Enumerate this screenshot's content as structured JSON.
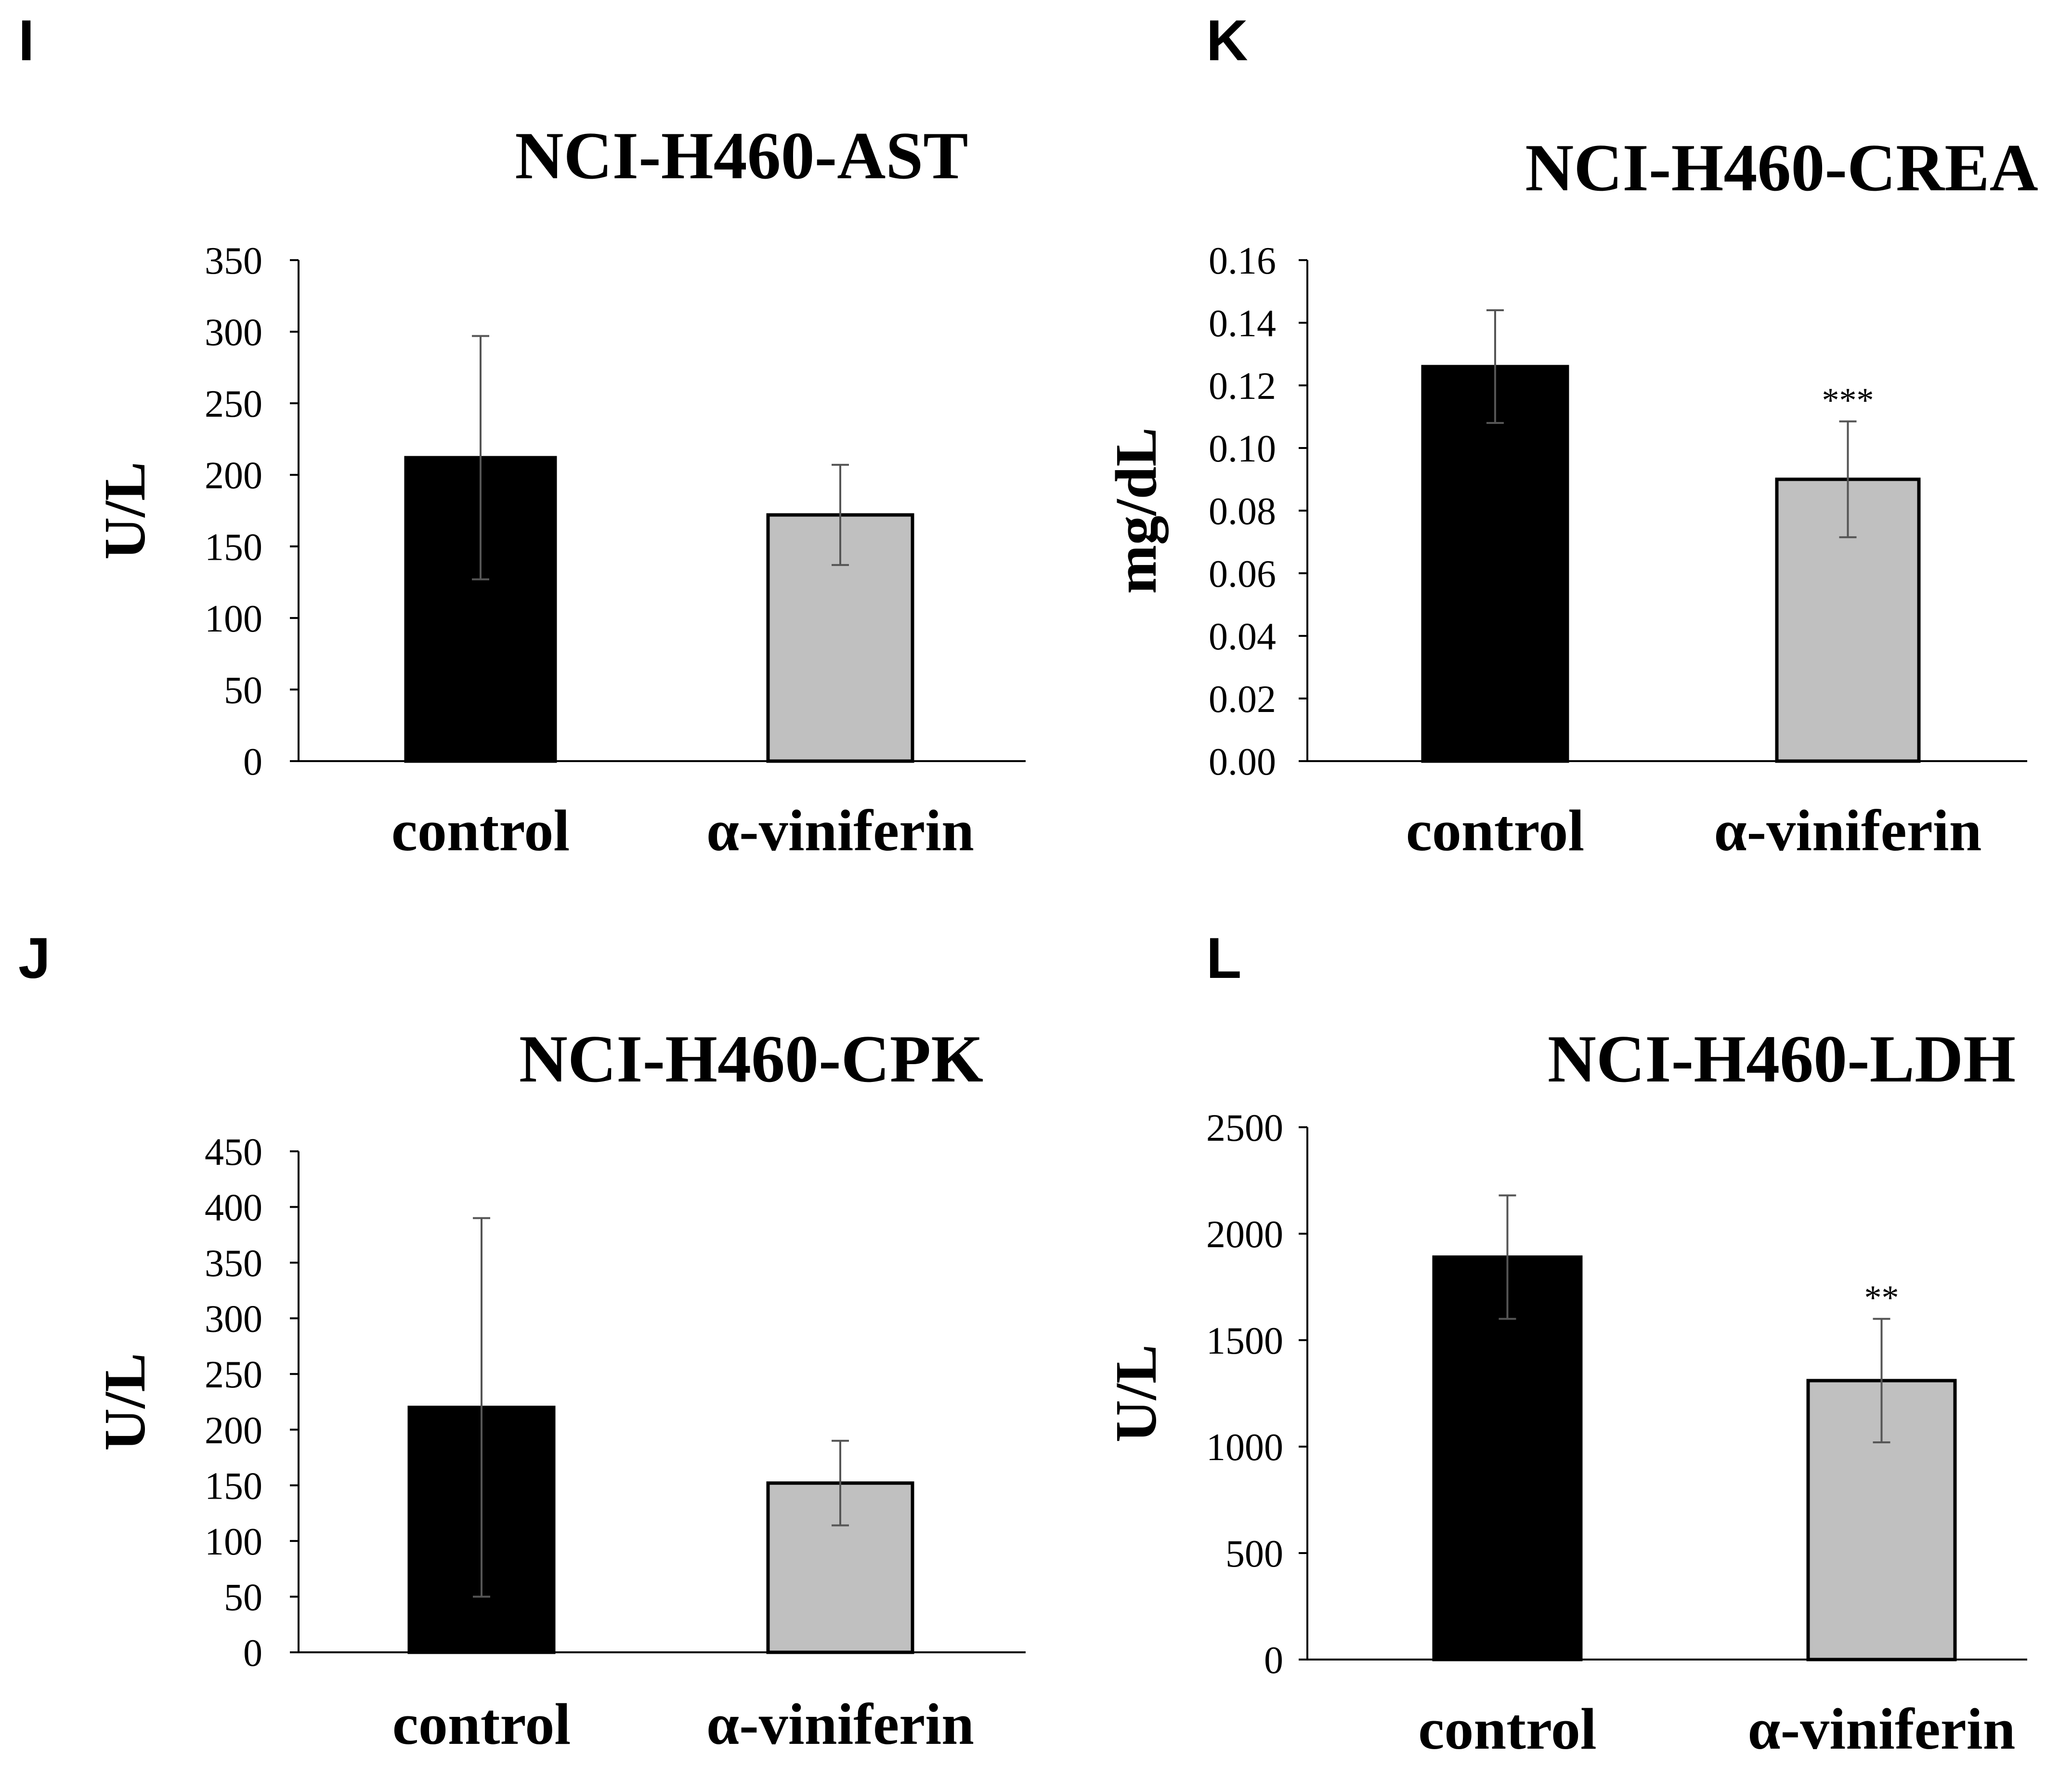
{
  "colors": {
    "control": "#000000",
    "treated": "#c0c0c0",
    "axis": "#000000",
    "errorbar": "#555555"
  },
  "chart_data": [
    {
      "panel": "I",
      "type": "bar",
      "title": "NCI-H460-AST",
      "ylabel": "U/L",
      "xlabel": "",
      "categories": [
        "control",
        "α-viniferin"
      ],
      "values": [
        212,
        172
      ],
      "errors": [
        85,
        35
      ],
      "significance": [
        "",
        ""
      ],
      "ylim": [
        0,
        350
      ],
      "yticks": [
        "0",
        "50",
        "100",
        "150",
        "200",
        "250",
        "300",
        "350"
      ]
    },
    {
      "panel": "K",
      "type": "bar",
      "title": "NCI-H460-CREA",
      "ylabel": "mg/dL",
      "xlabel": "",
      "categories": [
        "control",
        "α-viniferin"
      ],
      "values": [
        0.126,
        0.09
      ],
      "errors": [
        0.018,
        0.0185
      ],
      "significance": [
        "",
        "***"
      ],
      "ylim": [
        0,
        0.16
      ],
      "yticks": [
        "0.00",
        "0.02",
        "0.04",
        "0.06",
        "0.08",
        "0.10",
        "0.12",
        "0.14",
        "0.16"
      ]
    },
    {
      "panel": "J",
      "type": "bar",
      "title": "NCI-H460-CPK",
      "ylabel": "U/L",
      "xlabel": "",
      "categories": [
        "control",
        "α-viniferin"
      ],
      "values": [
        220,
        152
      ],
      "errors": [
        170,
        38
      ],
      "significance": [
        "",
        ""
      ],
      "ylim": [
        0,
        450
      ],
      "yticks": [
        "0",
        "50",
        "100",
        "150",
        "200",
        "250",
        "300",
        "350",
        "400",
        "450"
      ]
    },
    {
      "panel": "L",
      "type": "bar",
      "title": "NCI-H460-LDH",
      "ylabel": "U/L",
      "xlabel": "",
      "categories": [
        "control",
        "α-viniferin"
      ],
      "values": [
        1890,
        1310
      ],
      "errors": [
        290,
        290
      ],
      "significance": [
        "",
        "**"
      ],
      "ylim": [
        0,
        2500
      ],
      "yticks": [
        "0",
        "500",
        "1000",
        "1500",
        "2000",
        "2500"
      ]
    }
  ]
}
